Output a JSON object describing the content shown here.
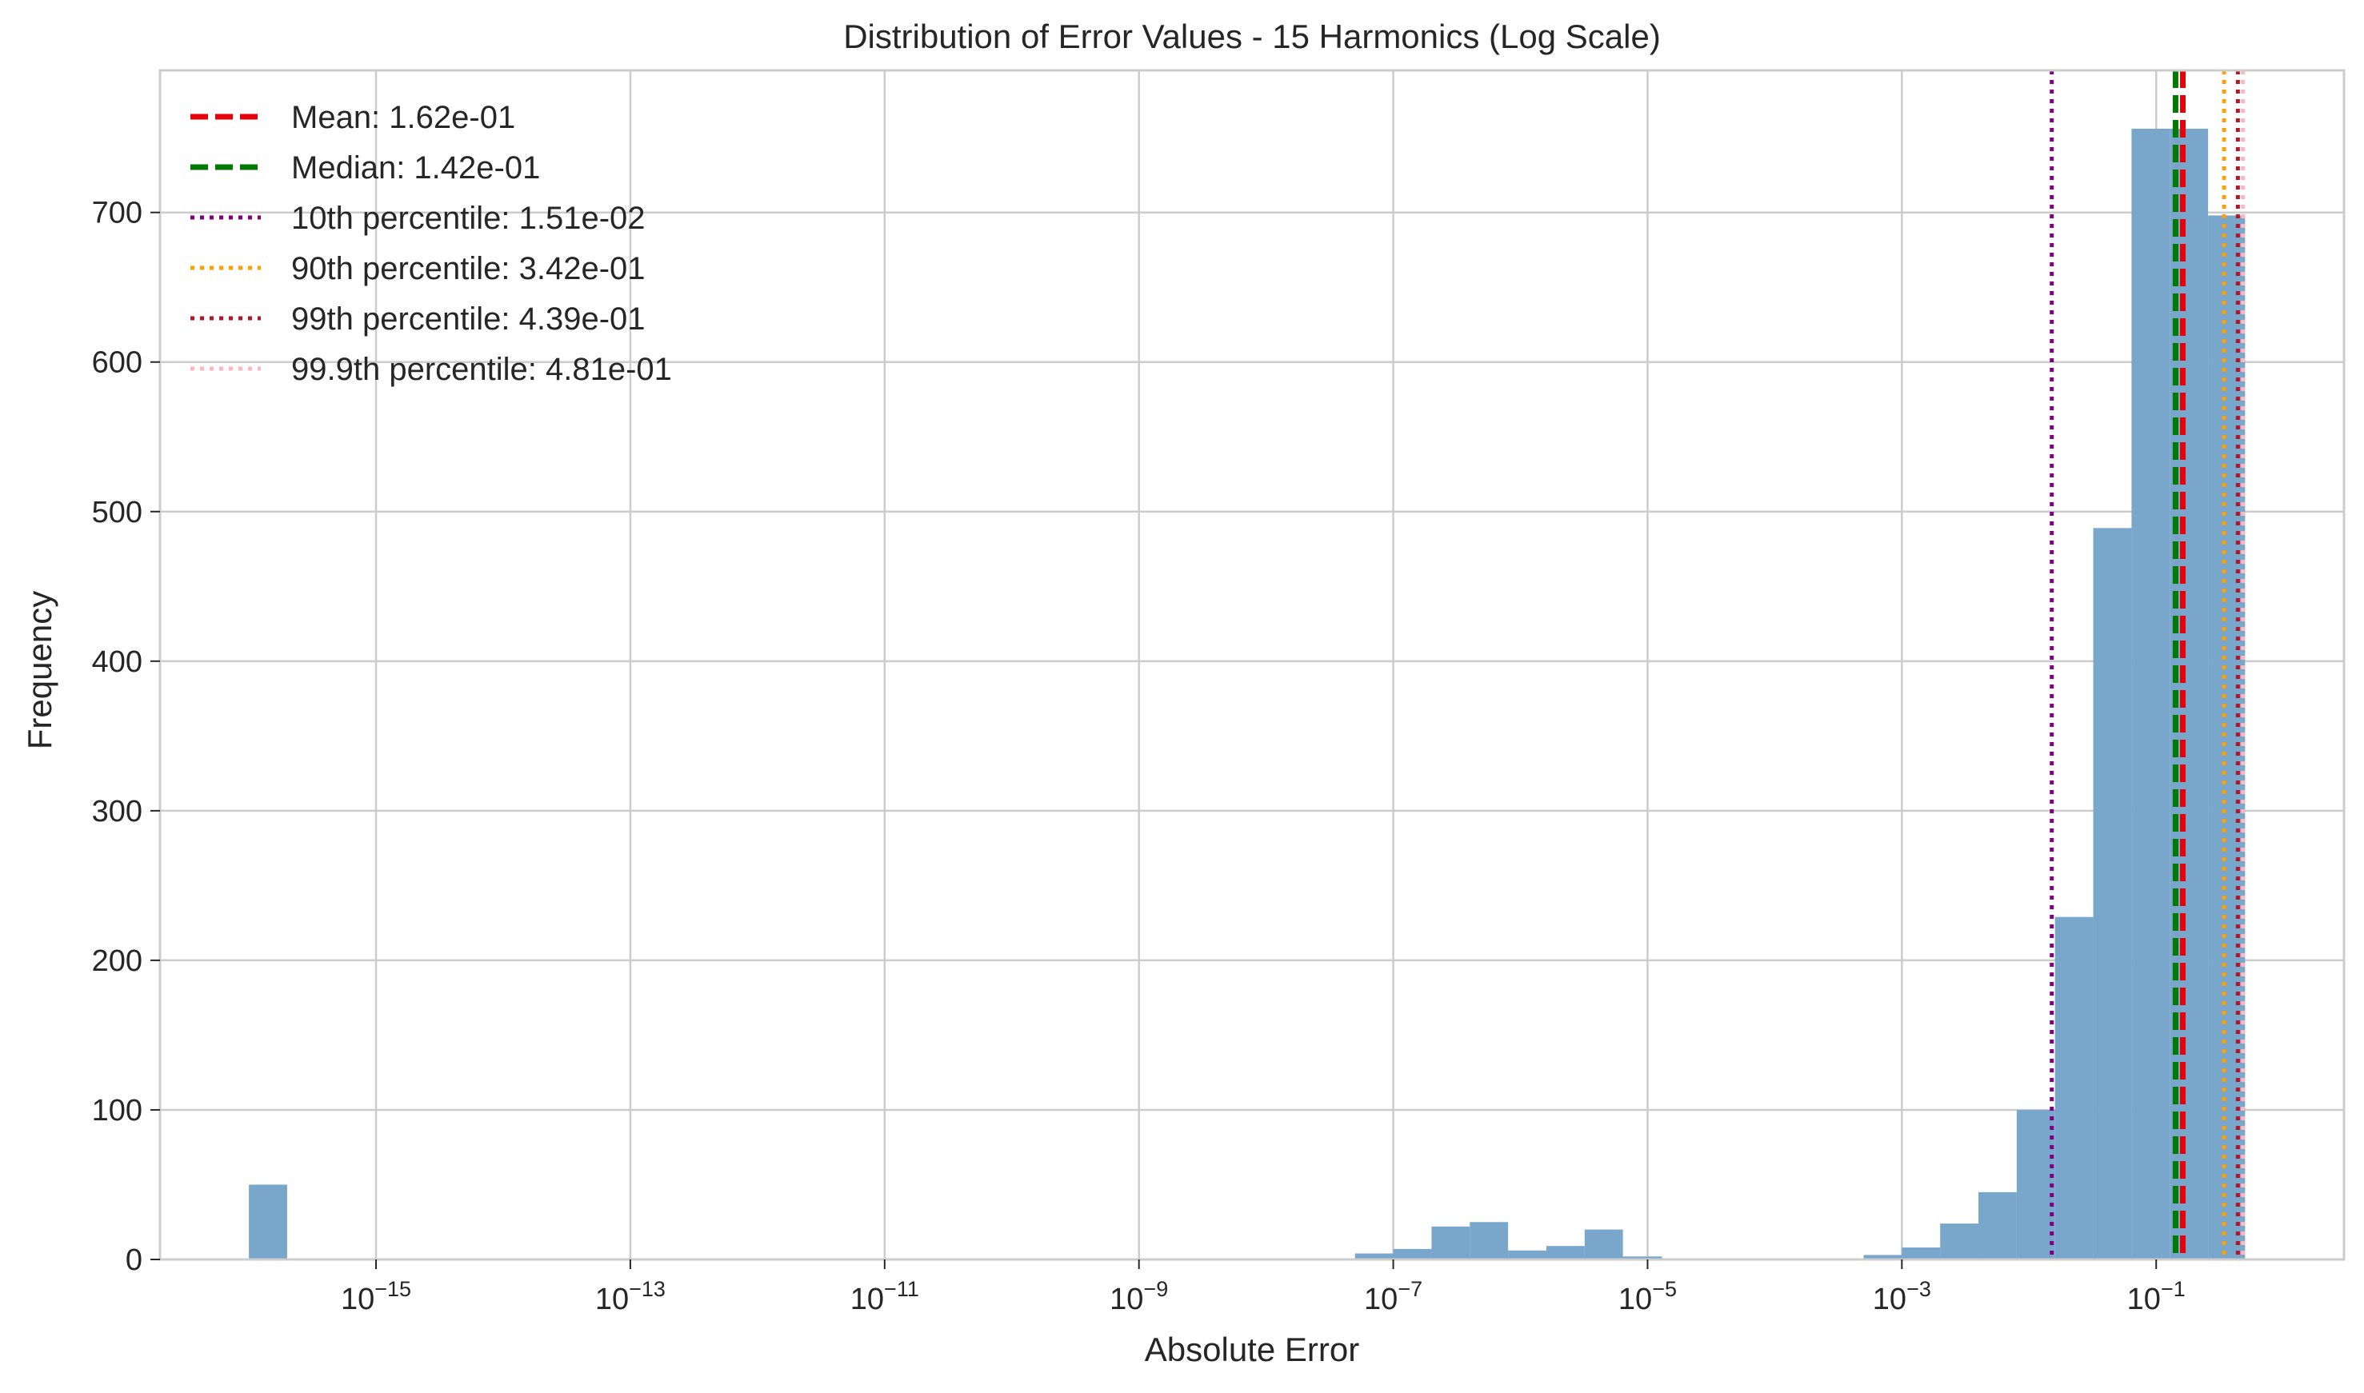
{
  "chart_data": {
    "type": "bar",
    "title": "Distribution of Error Values - 15 Harmonics (Log Scale)",
    "xlabel": "Absolute Error",
    "ylabel": "Frequency",
    "x_scale": "log",
    "xlim": [
      2e-17,
      3.0
    ],
    "ylim": [
      0,
      795
    ],
    "grid": true,
    "legend_position": "top-left",
    "bar_color": "#79a6cb",
    "x_ticks": [
      {
        "base": "10",
        "exp": "−15",
        "value": 1e-15
      },
      {
        "base": "10",
        "exp": "−13",
        "value": 1e-13
      },
      {
        "base": "10",
        "exp": "−11",
        "value": 1e-11
      },
      {
        "base": "10",
        "exp": "−9",
        "value": 1e-09
      },
      {
        "base": "10",
        "exp": "−7",
        "value": 1e-07
      },
      {
        "base": "10",
        "exp": "−5",
        "value": 1e-05
      },
      {
        "base": "10",
        "exp": "−3",
        "value": 0.001
      },
      {
        "base": "10",
        "exp": "−1",
        "value": 0.1
      }
    ],
    "y_ticks": [
      {
        "label": "0",
        "value": 0
      },
      {
        "label": "100",
        "value": 100
      },
      {
        "label": "200",
        "value": 200
      },
      {
        "label": "300",
        "value": 300
      },
      {
        "label": "400",
        "value": 400
      },
      {
        "label": "500",
        "value": 500
      },
      {
        "label": "600",
        "value": 600
      },
      {
        "label": "700",
        "value": 700
      }
    ],
    "bins": [
      {
        "x0": 1e-16,
        "x1": 2e-16,
        "count": 50
      },
      {
        "x0": 5e-08,
        "x1": 1e-07,
        "count": 4
      },
      {
        "x0": 1e-07,
        "x1": 2e-07,
        "count": 7
      },
      {
        "x0": 2e-07,
        "x1": 4e-07,
        "count": 22
      },
      {
        "x0": 4e-07,
        "x1": 8e-07,
        "count": 25
      },
      {
        "x0": 8e-07,
        "x1": 1.6e-06,
        "count": 6
      },
      {
        "x0": 1.6e-06,
        "x1": 3.2e-06,
        "count": 9
      },
      {
        "x0": 3.2e-06,
        "x1": 6.4e-06,
        "count": 20
      },
      {
        "x0": 6.4e-06,
        "x1": 1.3e-05,
        "count": 2
      },
      {
        "x0": 0.0005,
        "x1": 0.001,
        "count": 3
      },
      {
        "x0": 0.001,
        "x1": 0.002,
        "count": 8
      },
      {
        "x0": 0.002,
        "x1": 0.004,
        "count": 24
      },
      {
        "x0": 0.004,
        "x1": 0.008,
        "count": 45
      },
      {
        "x0": 0.008,
        "x1": 0.016,
        "count": 100
      },
      {
        "x0": 0.016,
        "x1": 0.032,
        "count": 229
      },
      {
        "x0": 0.032,
        "x1": 0.064,
        "count": 489
      },
      {
        "x0": 0.064,
        "x1": 0.128,
        "count": 756
      },
      {
        "x0": 0.128,
        "x1": 0.256,
        "count": 756
      },
      {
        "x0": 0.256,
        "x1": 0.5,
        "count": 698
      }
    ],
    "reference_lines": [
      {
        "label": "Mean: 1.62e-01",
        "value": 0.162,
        "color": "#e8000b",
        "style": "dashed"
      },
      {
        "label": "Median: 1.42e-01",
        "value": 0.142,
        "color": "#007a00",
        "style": "dashed"
      },
      {
        "label": "10th percentile: 1.51e-02",
        "value": 0.0151,
        "color": "#800080",
        "style": "dotted"
      },
      {
        "label": "90th percentile: 3.42e-01",
        "value": 0.342,
        "color": "#ff9f00",
        "style": "dotted"
      },
      {
        "label": "99th percentile: 4.39e-01",
        "value": 0.439,
        "color": "#b0182a",
        "style": "dotted"
      },
      {
        "label": "99.9th percentile: 4.81e-01",
        "value": 0.481,
        "color": "#ffb6c1",
        "style": "dotted"
      }
    ]
  }
}
